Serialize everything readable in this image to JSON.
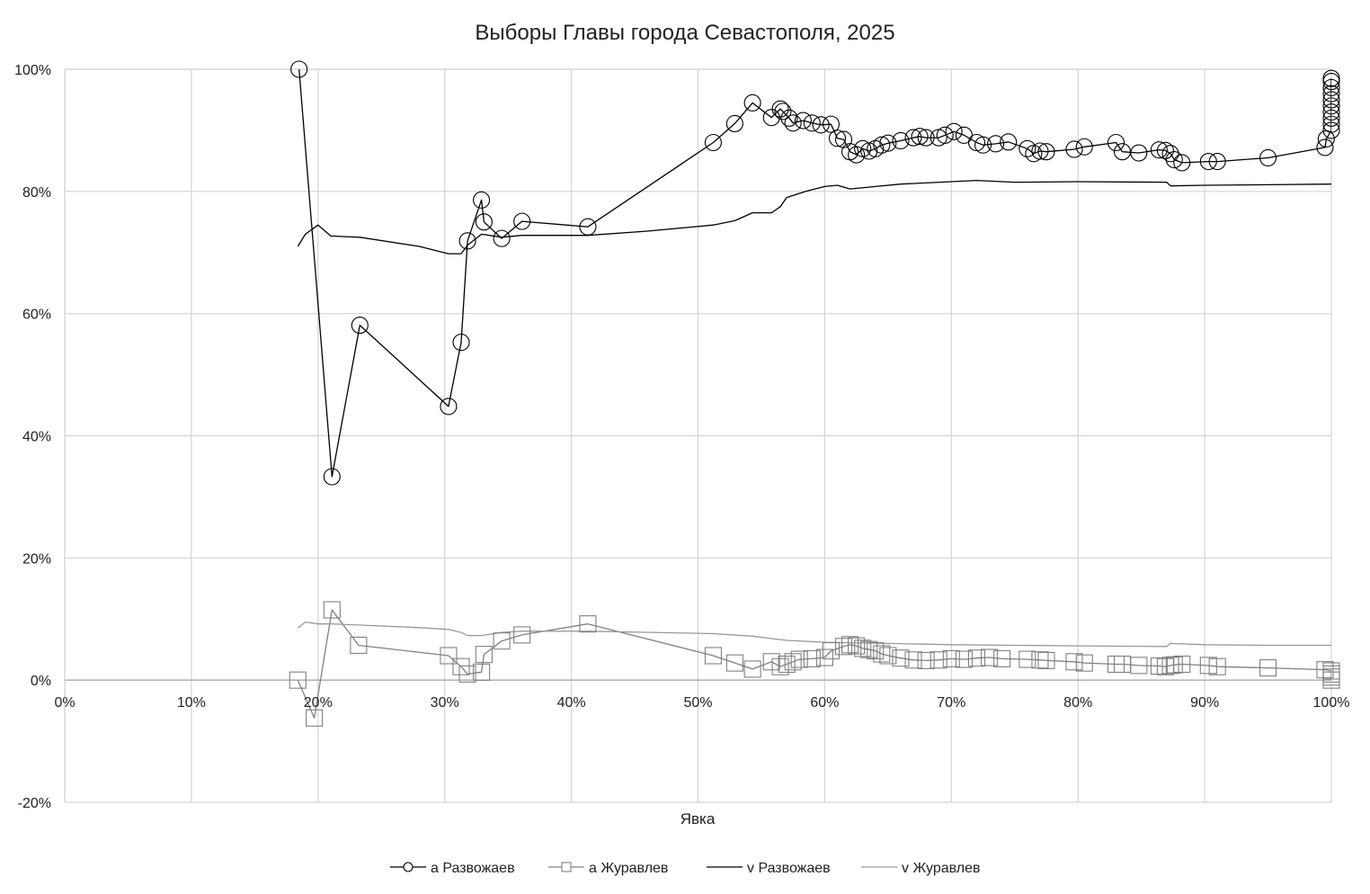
{
  "chart_data": {
    "type": "line",
    "title": "Выборы Главы города Севастополя, 2025",
    "xlabel": "Явка",
    "ylabel": "",
    "xlim": [
      0,
      1
    ],
    "ylim": [
      -0.2,
      1
    ],
    "x_ticks": [
      "0%",
      "10%",
      "20%",
      "30%",
      "40%",
      "50%",
      "60%",
      "70%",
      "80%",
      "90%",
      "100%"
    ],
    "y_ticks": [
      "-20%",
      "0%",
      "20%",
      "40%",
      "60%",
      "80%",
      "100%"
    ],
    "grid": true,
    "legend_position": "bottom",
    "series": [
      {
        "name": "a Развожаев",
        "marker": "circle",
        "color": "#000000",
        "points": [
          [
            0.185,
            1.0
          ],
          [
            0.211,
            0.333
          ],
          [
            0.233,
            0.581
          ],
          [
            0.303,
            0.448
          ],
          [
            0.313,
            0.553
          ],
          [
            0.318,
            0.719
          ],
          [
            0.329,
            0.786
          ],
          [
            0.331,
            0.75
          ],
          [
            0.345,
            0.723
          ],
          [
            0.361,
            0.751
          ],
          [
            0.413,
            0.742
          ],
          [
            0.512,
            0.88
          ],
          [
            0.529,
            0.911
          ],
          [
            0.543,
            0.945
          ],
          [
            0.558,
            0.921
          ],
          [
            0.565,
            0.935
          ],
          [
            0.567,
            0.931
          ],
          [
            0.572,
            0.92
          ],
          [
            0.575,
            0.912
          ],
          [
            0.583,
            0.916
          ],
          [
            0.59,
            0.912
          ],
          [
            0.597,
            0.909
          ],
          [
            0.605,
            0.91
          ],
          [
            0.61,
            0.887
          ],
          [
            0.615,
            0.885
          ],
          [
            0.62,
            0.865
          ],
          [
            0.625,
            0.86
          ],
          [
            0.63,
            0.87
          ],
          [
            0.635,
            0.866
          ],
          [
            0.64,
            0.87
          ],
          [
            0.645,
            0.876
          ],
          [
            0.65,
            0.879
          ],
          [
            0.66,
            0.883
          ],
          [
            0.67,
            0.888
          ],
          [
            0.675,
            0.89
          ],
          [
            0.68,
            0.888
          ],
          [
            0.69,
            0.888
          ],
          [
            0.695,
            0.892
          ],
          [
            0.702,
            0.898
          ],
          [
            0.71,
            0.892
          ],
          [
            0.72,
            0.88
          ],
          [
            0.725,
            0.876
          ],
          [
            0.735,
            0.878
          ],
          [
            0.745,
            0.881
          ],
          [
            0.76,
            0.87
          ],
          [
            0.765,
            0.862
          ],
          [
            0.77,
            0.866
          ],
          [
            0.775,
            0.865
          ],
          [
            0.797,
            0.869
          ],
          [
            0.805,
            0.873
          ],
          [
            0.83,
            0.88
          ],
          [
            0.835,
            0.865
          ],
          [
            0.848,
            0.863
          ],
          [
            0.864,
            0.868
          ],
          [
            0.869,
            0.867
          ],
          [
            0.873,
            0.862
          ],
          [
            0.876,
            0.852
          ],
          [
            0.882,
            0.847
          ],
          [
            0.903,
            0.849
          ],
          [
            0.91,
            0.849
          ],
          [
            0.95,
            0.855
          ],
          [
            0.995,
            0.872
          ],
          [
            0.996,
            0.886
          ],
          [
            1.0,
            0.9
          ],
          [
            1.0,
            0.91
          ],
          [
            1.0,
            0.92
          ],
          [
            1.0,
            0.93
          ],
          [
            1.0,
            0.94
          ],
          [
            1.0,
            0.95
          ],
          [
            1.0,
            0.96
          ],
          [
            1.0,
            0.97
          ],
          [
            1.0,
            0.98
          ],
          [
            1.0,
            0.985
          ]
        ]
      },
      {
        "name": "a Журавлев",
        "marker": "square",
        "color": "#808080",
        "points": [
          [
            0.184,
            0.0
          ],
          [
            0.197,
            -0.062
          ],
          [
            0.211,
            0.115
          ],
          [
            0.232,
            0.057
          ],
          [
            0.303,
            0.04
          ],
          [
            0.313,
            0.022
          ],
          [
            0.318,
            0.01
          ],
          [
            0.329,
            0.013
          ],
          [
            0.331,
            0.042
          ],
          [
            0.345,
            0.064
          ],
          [
            0.361,
            0.074
          ],
          [
            0.413,
            0.092
          ],
          [
            0.512,
            0.04
          ],
          [
            0.529,
            0.028
          ],
          [
            0.543,
            0.018
          ],
          [
            0.558,
            0.03
          ],
          [
            0.565,
            0.022
          ],
          [
            0.57,
            0.026
          ],
          [
            0.575,
            0.03
          ],
          [
            0.58,
            0.034
          ],
          [
            0.59,
            0.035
          ],
          [
            0.6,
            0.037
          ],
          [
            0.605,
            0.048
          ],
          [
            0.615,
            0.055
          ],
          [
            0.62,
            0.058
          ],
          [
            0.625,
            0.056
          ],
          [
            0.63,
            0.052
          ],
          [
            0.635,
            0.05
          ],
          [
            0.64,
            0.048
          ],
          [
            0.645,
            0.043
          ],
          [
            0.65,
            0.04
          ],
          [
            0.66,
            0.036
          ],
          [
            0.67,
            0.033
          ],
          [
            0.68,
            0.032
          ],
          [
            0.69,
            0.033
          ],
          [
            0.7,
            0.035
          ],
          [
            0.71,
            0.034
          ],
          [
            0.72,
            0.036
          ],
          [
            0.73,
            0.037
          ],
          [
            0.74,
            0.035
          ],
          [
            0.76,
            0.034
          ],
          [
            0.77,
            0.033
          ],
          [
            0.775,
            0.032
          ],
          [
            0.797,
            0.03
          ],
          [
            0.805,
            0.028
          ],
          [
            0.83,
            0.026
          ],
          [
            0.835,
            0.026
          ],
          [
            0.848,
            0.024
          ],
          [
            0.864,
            0.023
          ],
          [
            0.869,
            0.022
          ],
          [
            0.873,
            0.024
          ],
          [
            0.876,
            0.025
          ],
          [
            0.882,
            0.026
          ],
          [
            0.903,
            0.024
          ],
          [
            0.91,
            0.022
          ],
          [
            0.95,
            0.02
          ],
          [
            0.995,
            0.017
          ],
          [
            1.0,
            0.015
          ],
          [
            1.0,
            0.01
          ],
          [
            1.0,
            0.005
          ],
          [
            1.0,
            0.0
          ]
        ]
      },
      {
        "name": "v Развожаев",
        "marker": "none",
        "color": "#000000",
        "points": [
          [
            0.184,
            0.71
          ],
          [
            0.19,
            0.73
          ],
          [
            0.2,
            0.745
          ],
          [
            0.21,
            0.727
          ],
          [
            0.233,
            0.725
          ],
          [
            0.28,
            0.71
          ],
          [
            0.303,
            0.698
          ],
          [
            0.313,
            0.698
          ],
          [
            0.318,
            0.712
          ],
          [
            0.329,
            0.73
          ],
          [
            0.345,
            0.725
          ],
          [
            0.361,
            0.728
          ],
          [
            0.413,
            0.728
          ],
          [
            0.46,
            0.735
          ],
          [
            0.512,
            0.745
          ],
          [
            0.529,
            0.752
          ],
          [
            0.543,
            0.765
          ],
          [
            0.558,
            0.765
          ],
          [
            0.565,
            0.775
          ],
          [
            0.57,
            0.79
          ],
          [
            0.585,
            0.8
          ],
          [
            0.6,
            0.808
          ],
          [
            0.61,
            0.81
          ],
          [
            0.62,
            0.804
          ],
          [
            0.64,
            0.808
          ],
          [
            0.66,
            0.812
          ],
          [
            0.7,
            0.816
          ],
          [
            0.72,
            0.818
          ],
          [
            0.75,
            0.815
          ],
          [
            0.8,
            0.816
          ],
          [
            0.87,
            0.815
          ],
          [
            0.873,
            0.809
          ],
          [
            0.9,
            0.81
          ],
          [
            0.95,
            0.811
          ],
          [
            1.0,
            0.812
          ]
        ]
      },
      {
        "name": "v Журавлев",
        "marker": "none",
        "color": "#999999",
        "points": [
          [
            0.184,
            0.085
          ],
          [
            0.19,
            0.095
          ],
          [
            0.2,
            0.092
          ],
          [
            0.21,
            0.092
          ],
          [
            0.233,
            0.09
          ],
          [
            0.28,
            0.086
          ],
          [
            0.303,
            0.083
          ],
          [
            0.313,
            0.078
          ],
          [
            0.318,
            0.073
          ],
          [
            0.329,
            0.073
          ],
          [
            0.345,
            0.078
          ],
          [
            0.361,
            0.08
          ],
          [
            0.413,
            0.08
          ],
          [
            0.512,
            0.076
          ],
          [
            0.543,
            0.072
          ],
          [
            0.558,
            0.068
          ],
          [
            0.57,
            0.065
          ],
          [
            0.6,
            0.062
          ],
          [
            0.65,
            0.06
          ],
          [
            0.7,
            0.058
          ],
          [
            0.8,
            0.056
          ],
          [
            0.87,
            0.055
          ],
          [
            0.873,
            0.06
          ],
          [
            0.9,
            0.058
          ],
          [
            0.95,
            0.057
          ],
          [
            1.0,
            0.057
          ]
        ]
      }
    ]
  }
}
